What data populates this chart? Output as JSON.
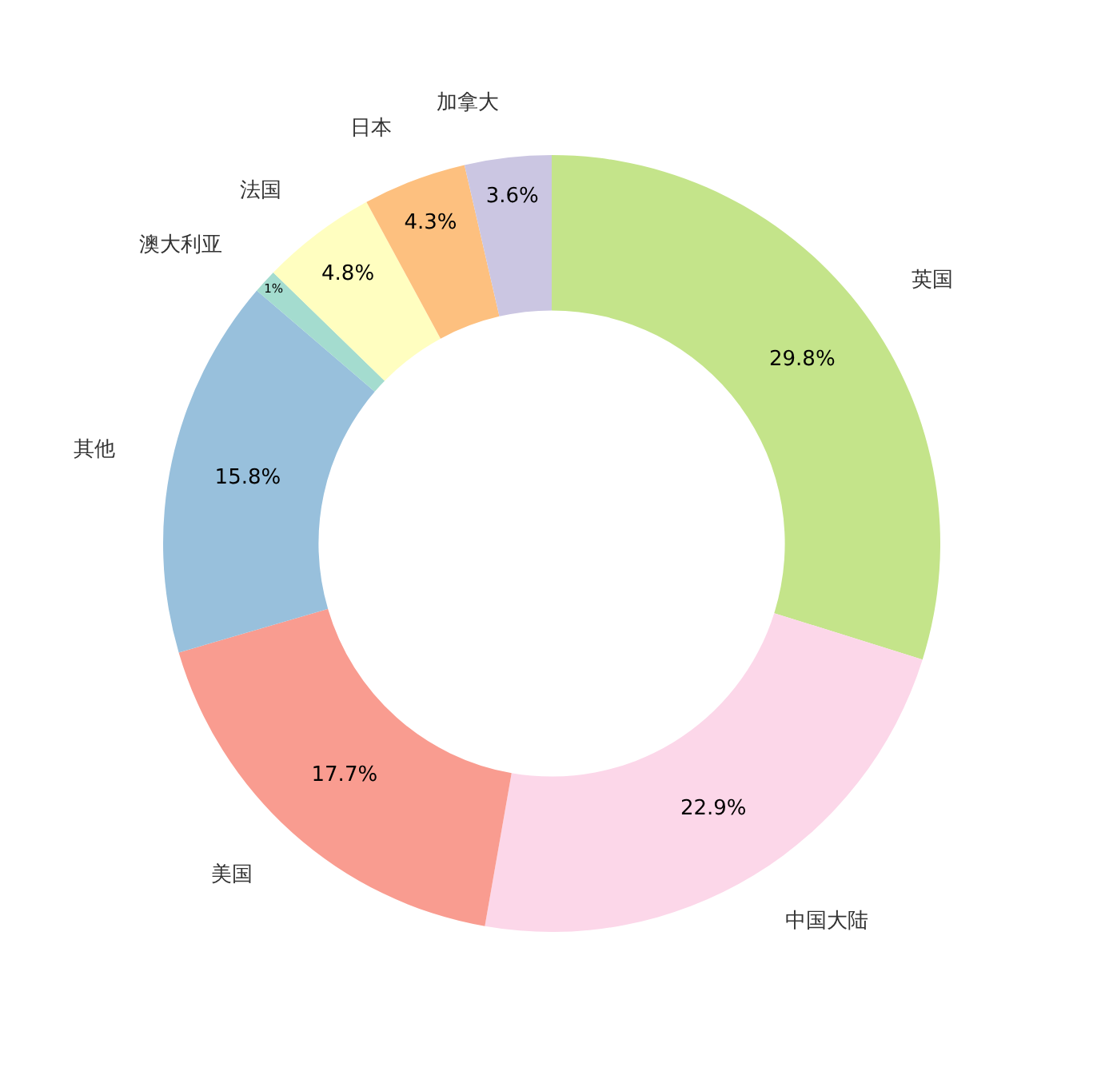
{
  "chart_data": {
    "type": "donut",
    "categories": [
      "英国",
      "中国大陆",
      "美国",
      "其他",
      "澳大利亚",
      "法国",
      "日本",
      "加拿大"
    ],
    "values": [
      29.8,
      22.9,
      17.7,
      15.8,
      1,
      4.8,
      4.3,
      3.6
    ],
    "value_labels": [
      "29.8%",
      "22.9%",
      "17.7%",
      "15.8%",
      "1%",
      "4.8%",
      "4.3%",
      "3.6%"
    ],
    "colors": [
      "#c4e48a",
      "#fcd7e9",
      "#f99c90",
      "#98c0dc",
      "#a4dccf",
      "#fffec0",
      "#fdc07f",
      "#cbc6e2"
    ],
    "legend": false
  }
}
